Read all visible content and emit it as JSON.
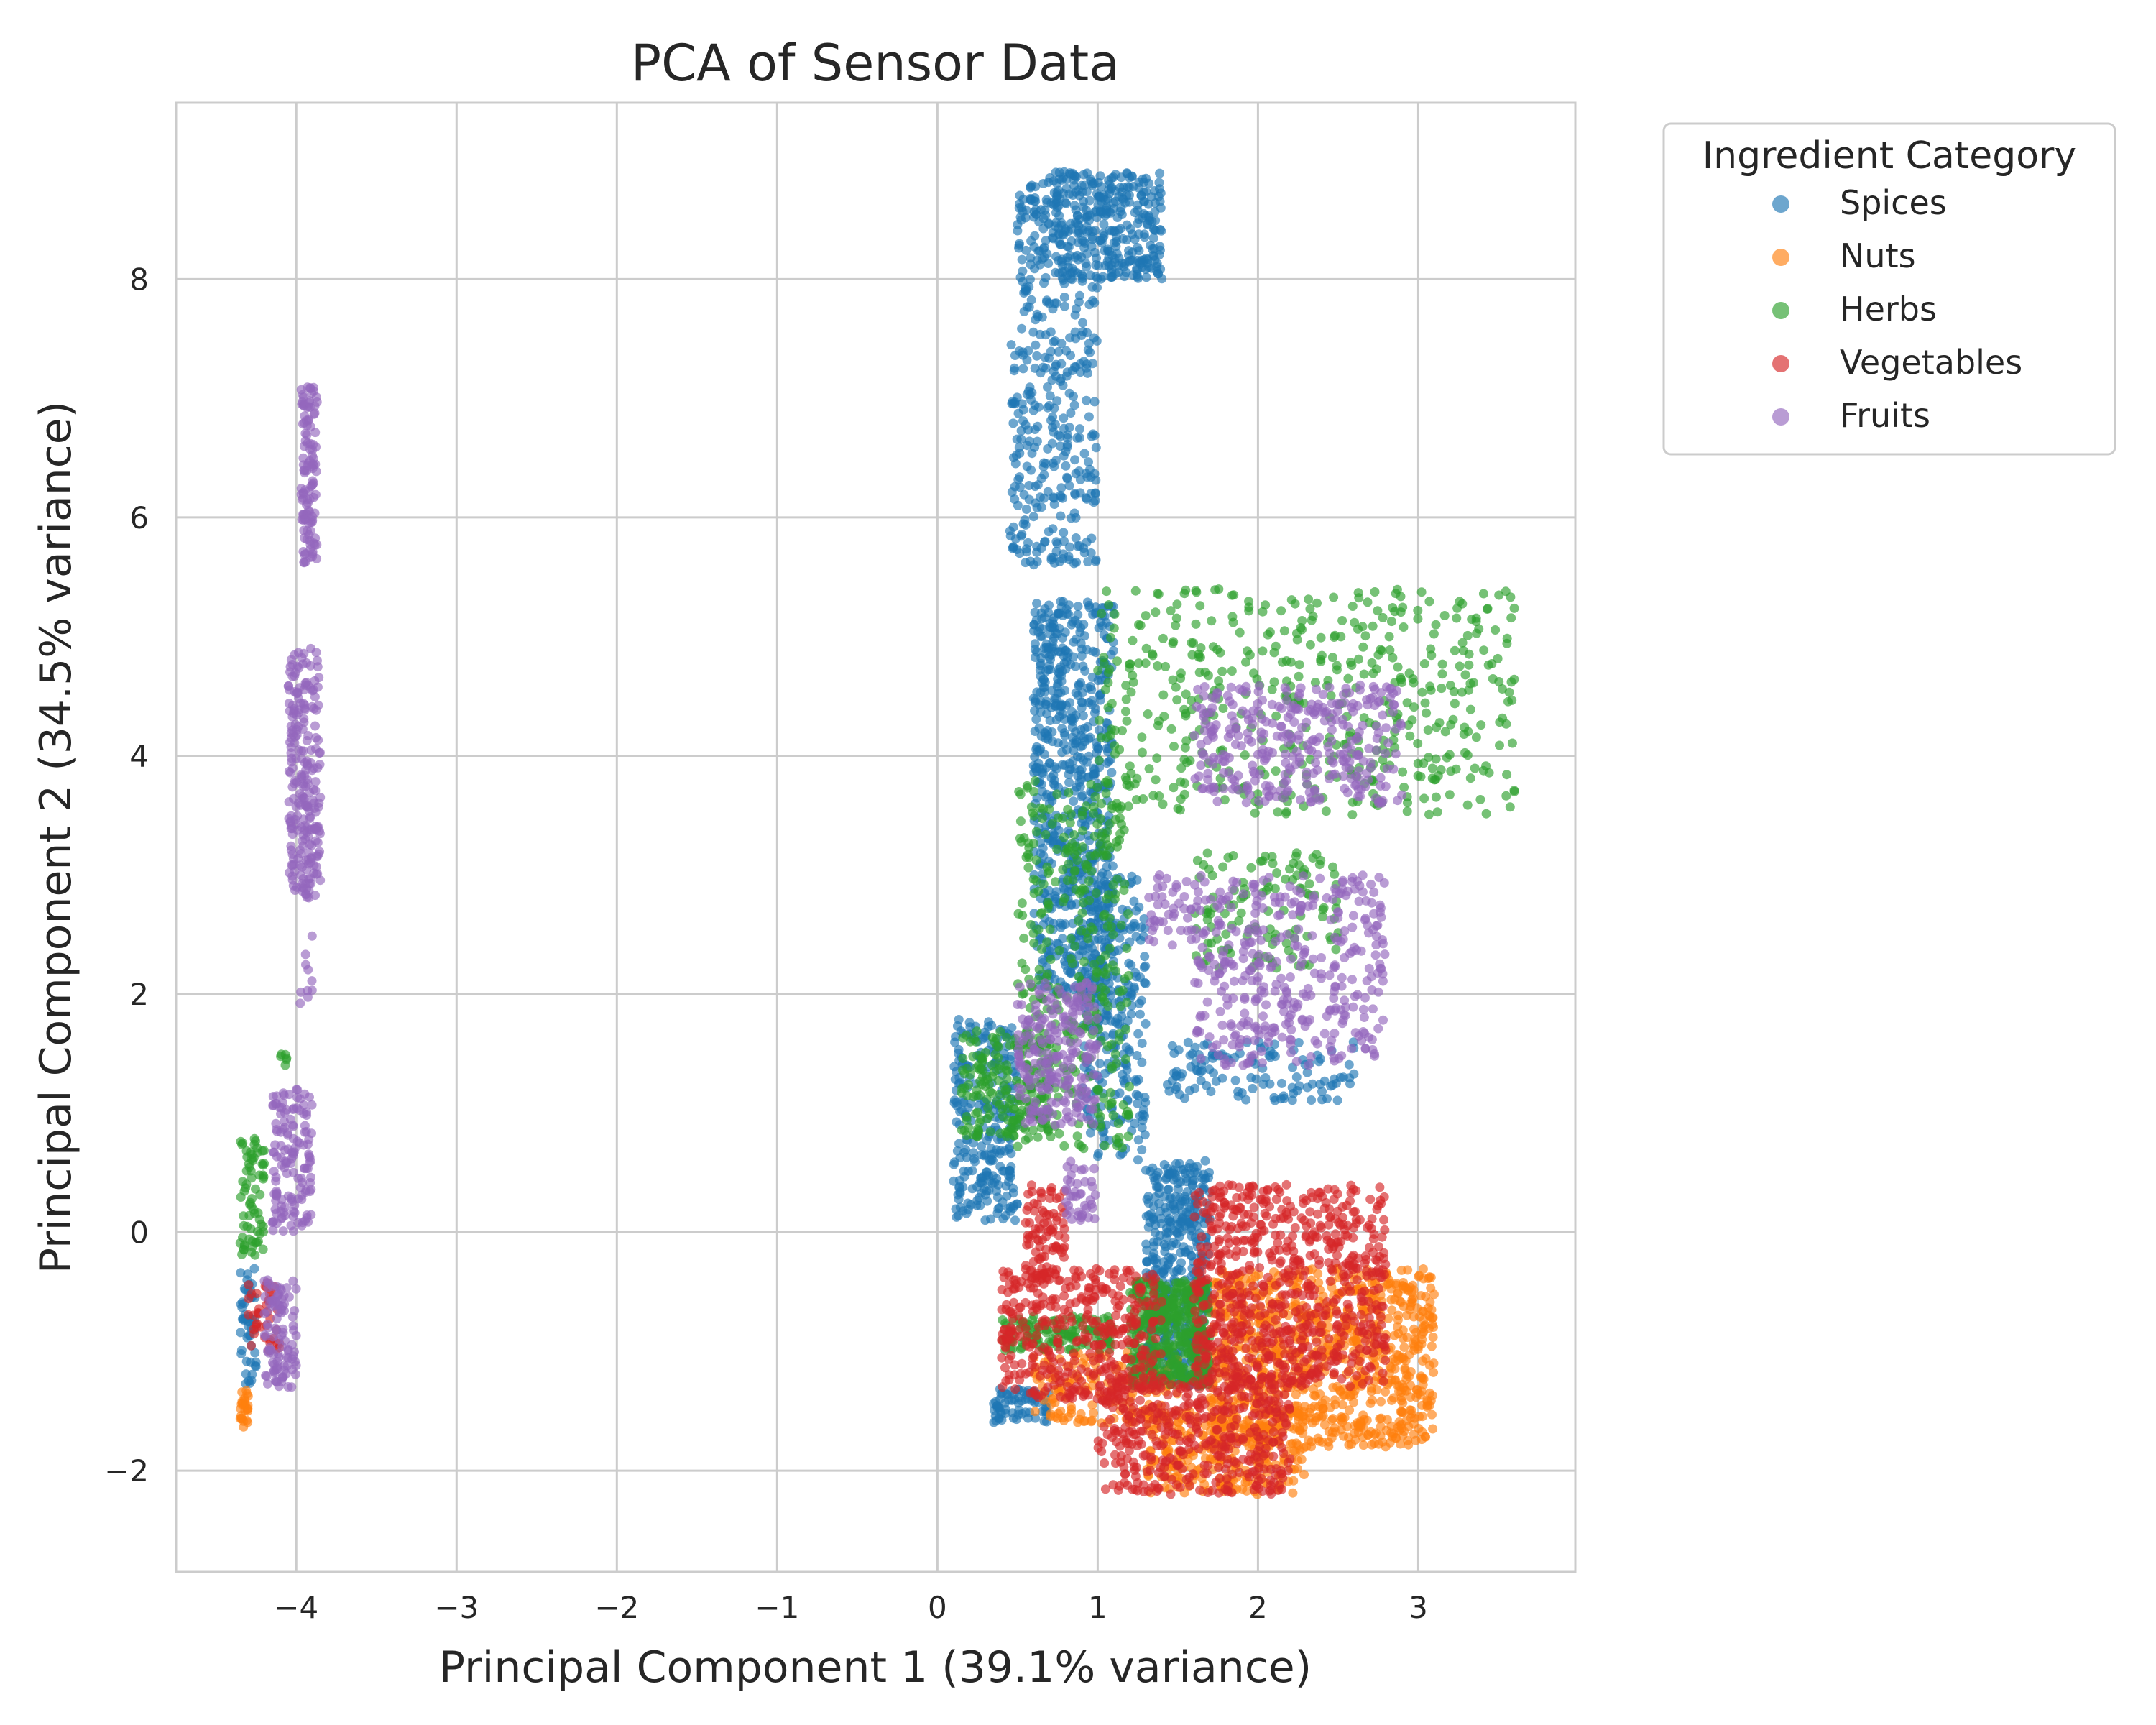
{
  "chart_data": {
    "type": "scatter",
    "title": "PCA of Sensor Data",
    "xlabel": "Principal Component 1 (39.1% variance)",
    "ylabel": "Principal Component 2 (34.5% variance)",
    "xlim": [
      -4.75,
      3.98
    ],
    "ylim": [
      -2.85,
      9.48
    ],
    "xticks": [
      -4,
      -3,
      -2,
      -1,
      0,
      1,
      2,
      3
    ],
    "xtick_labels": [
      "−4",
      "−3",
      "−2",
      "−1",
      "0",
      "1",
      "2",
      "3"
    ],
    "yticks": [
      -2,
      0,
      2,
      4,
      6,
      8
    ],
    "ytick_labels": [
      "−2",
      "0",
      "2",
      "4",
      "6",
      "8"
    ],
    "grid": true,
    "legend": {
      "title": "Ingredient Category",
      "placement": "outside-upper-right"
    },
    "series": [
      {
        "name": "Spices",
        "color": "#1f77b4",
        "clusters": [
          {
            "x_range": [
              0.5,
              1.4
            ],
            "y_range": [
              8.0,
              8.9
            ],
            "n": 420
          },
          {
            "x_range": [
              0.45,
              1.0
            ],
            "y_range": [
              5.6,
              8.0
            ],
            "n": 300
          },
          {
            "x_range": [
              0.6,
              1.1
            ],
            "y_range": [
              2.0,
              5.3
            ],
            "n": 700
          },
          {
            "x_range": [
              0.1,
              0.5
            ],
            "y_range": [
              0.1,
              1.8
            ],
            "n": 260
          },
          {
            "x_range": [
              1.3,
              1.7
            ],
            "y_range": [
              -1.3,
              0.6
            ],
            "n": 420
          },
          {
            "x_range": [
              0.9,
              1.3
            ],
            "y_range": [
              0.6,
              3.0
            ],
            "n": 260
          },
          {
            "x_range": [
              1.4,
              2.6
            ],
            "y_range": [
              1.1,
              1.6
            ],
            "n": 120
          },
          {
            "x_range": [
              0.35,
              0.7
            ],
            "y_range": [
              -1.6,
              -1.3
            ],
            "n": 70
          },
          {
            "x_range": [
              -4.35,
              -4.25
            ],
            "y_range": [
              -1.3,
              -0.3
            ],
            "n": 50
          }
        ]
      },
      {
        "name": "Nuts",
        "color": "#ff7f0e",
        "clusters": [
          {
            "x_range": [
              1.7,
              3.1
            ],
            "y_range": [
              -1.8,
              -0.3
            ],
            "n": 900
          },
          {
            "x_range": [
              0.6,
              1.5
            ],
            "y_range": [
              -1.6,
              -1.0
            ],
            "n": 160
          },
          {
            "x_range": [
              1.3,
              2.3
            ],
            "y_range": [
              -2.2,
              -1.5
            ],
            "n": 260
          },
          {
            "x_range": [
              -4.35,
              -4.3
            ],
            "y_range": [
              -1.65,
              -1.3
            ],
            "n": 25
          }
        ]
      },
      {
        "name": "Herbs",
        "color": "#2ca02c",
        "clusters": [
          {
            "x_range": [
              1.0,
              3.6
            ],
            "y_range": [
              3.5,
              5.4
            ],
            "n": 500
          },
          {
            "x_range": [
              0.5,
              1.2
            ],
            "y_range": [
              0.7,
              3.8
            ],
            "n": 360
          },
          {
            "x_range": [
              0.15,
              0.7
            ],
            "y_range": [
              0.8,
              1.7
            ],
            "n": 180
          },
          {
            "x_range": [
              1.2,
              1.7
            ],
            "y_range": [
              -1.3,
              -0.4
            ],
            "n": 420
          },
          {
            "x_range": [
              0.4,
              1.1
            ],
            "y_range": [
              -1.0,
              -0.7
            ],
            "n": 120
          },
          {
            "x_range": [
              1.6,
              2.5
            ],
            "y_range": [
              2.2,
              3.2
            ],
            "n": 120
          },
          {
            "x_range": [
              -4.35,
              -4.2
            ],
            "y_range": [
              -0.2,
              0.8
            ],
            "n": 70
          },
          {
            "x_range": [
              -4.1,
              -4.05
            ],
            "y_range": [
              1.4,
              1.5
            ],
            "n": 6
          }
        ]
      },
      {
        "name": "Vegetables",
        "color": "#d62728",
        "clusters": [
          {
            "x_range": [
              1.6,
              2.8
            ],
            "y_range": [
              -1.3,
              0.4
            ],
            "n": 700
          },
          {
            "x_range": [
              0.4,
              1.4
            ],
            "y_range": [
              -1.4,
              -0.3
            ],
            "n": 380
          },
          {
            "x_range": [
              1.0,
              2.2
            ],
            "y_range": [
              -2.2,
              -1.2
            ],
            "n": 420
          },
          {
            "x_range": [
              0.55,
              0.8
            ],
            "y_range": [
              -0.4,
              0.4
            ],
            "n": 90
          },
          {
            "x_range": [
              -4.3,
              -4.1
            ],
            "y_range": [
              -1.0,
              -0.4
            ],
            "n": 40
          }
        ]
      },
      {
        "name": "Fruits",
        "color": "#9467bd",
        "clusters": [
          {
            "x_range": [
              -3.97,
              -3.87
            ],
            "y_range": [
              5.6,
              7.1
            ],
            "n": 120
          },
          {
            "x_range": [
              -4.05,
              -3.85
            ],
            "y_range": [
              2.8,
              4.9
            ],
            "n": 240
          },
          {
            "x_range": [
              -4.15,
              -3.9
            ],
            "y_range": [
              0.0,
              1.2
            ],
            "n": 140
          },
          {
            "x_range": [
              -4.2,
              -4.0
            ],
            "y_range": [
              -1.3,
              -0.4
            ],
            "n": 100
          },
          {
            "x_range": [
              -4.0,
              -3.9
            ],
            "y_range": [
              1.8,
              2.6
            ],
            "n": 10
          },
          {
            "x_range": [
              1.6,
              2.9
            ],
            "y_range": [
              3.6,
              4.6
            ],
            "n": 320
          },
          {
            "x_range": [
              1.6,
              2.8
            ],
            "y_range": [
              1.4,
              3.0
            ],
            "n": 380
          },
          {
            "x_range": [
              0.5,
              1.0
            ],
            "y_range": [
              0.9,
              2.1
            ],
            "n": 220
          },
          {
            "x_range": [
              1.3,
              1.6
            ],
            "y_range": [
              2.4,
              3.0
            ],
            "n": 40
          },
          {
            "x_range": [
              0.8,
              1.0
            ],
            "y_range": [
              0.1,
              0.6
            ],
            "n": 40
          }
        ]
      }
    ]
  }
}
